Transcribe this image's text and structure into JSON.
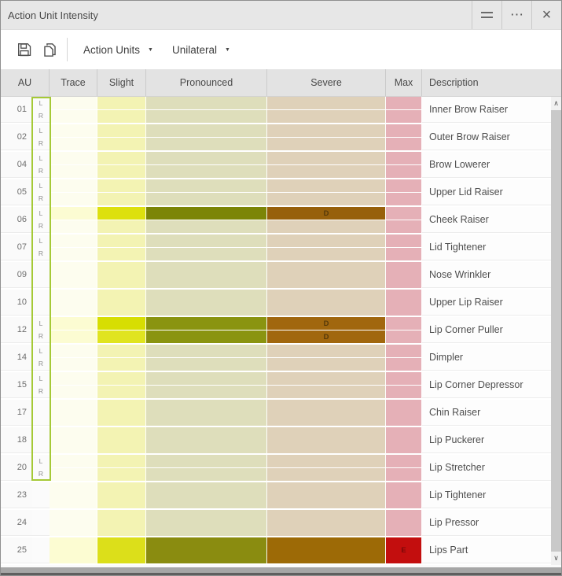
{
  "window": {
    "title": "Action Unit Intensity",
    "controls": {
      "more": "⋯",
      "close": "×"
    }
  },
  "toolbar": {
    "dropdowns": [
      {
        "label": "Action Units",
        "caret": "▼"
      },
      {
        "label": "Unilateral",
        "caret": "▼"
      }
    ]
  },
  "table": {
    "columns": [
      "AU",
      "Trace",
      "Slight",
      "Pronounced",
      "Severe",
      "Max",
      "Description"
    ],
    "palette": {
      "t0": "#fdfdef",
      "s0": "#f3f3b3",
      "p0": "#dedebb",
      "v0": "#dfd1b9",
      "m0": "#e5b0b7",
      "t1": "#fcfcd2",
      "s1": "#dde00e",
      "s2": "#d7de02",
      "s3": "#e0e41f",
      "s4": "#dcdf1a",
      "p1": "#7c8507",
      "p2": "#8a9410",
      "p3": "#8a8c10",
      "v1": "#97600b",
      "v2": "#a1670e",
      "v3": "#9d6a06",
      "m1": "#c30e0e"
    },
    "label_colors": {
      "D": "#54380a",
      "E": "#7c0808"
    },
    "rows": [
      {
        "au": "01",
        "description": "Inner Brow Raiser",
        "green": true,
        "subrows": [
          {
            "side": "L",
            "cells": [
              "t0",
              "s0",
              "p0",
              "v0",
              "m0"
            ]
          },
          {
            "side": "R",
            "cells": [
              "t0",
              "s0",
              "p0",
              "v0",
              "m0"
            ]
          }
        ]
      },
      {
        "au": "02",
        "description": "Outer Brow Raiser",
        "green": true,
        "subrows": [
          {
            "side": "L",
            "cells": [
              "t0",
              "s0",
              "p0",
              "v0",
              "m0"
            ]
          },
          {
            "side": "R",
            "cells": [
              "t0",
              "s0",
              "p0",
              "v0",
              "m0"
            ]
          }
        ]
      },
      {
        "au": "04",
        "description": "Brow Lowerer",
        "green": true,
        "subrows": [
          {
            "side": "L",
            "cells": [
              "t0",
              "s0",
              "p0",
              "v0",
              "m0"
            ]
          },
          {
            "side": "R",
            "cells": [
              "t0",
              "s0",
              "p0",
              "v0",
              "m0"
            ]
          }
        ]
      },
      {
        "au": "05",
        "description": "Upper Lid Raiser",
        "green": true,
        "subrows": [
          {
            "side": "L",
            "cells": [
              "t0",
              "s0",
              "p0",
              "v0",
              "m0"
            ]
          },
          {
            "side": "R",
            "cells": [
              "t0",
              "s0",
              "p0",
              "v0",
              "m0"
            ]
          }
        ]
      },
      {
        "au": "06",
        "description": "Cheek Raiser",
        "green": true,
        "subrows": [
          {
            "side": "L",
            "cells": [
              "t1",
              "s1",
              "p1",
              "v1",
              "m0"
            ],
            "labels": {
              "3": "D"
            }
          },
          {
            "side": "R",
            "cells": [
              "t0",
              "s0",
              "p0",
              "v0",
              "m0"
            ]
          }
        ]
      },
      {
        "au": "07",
        "description": "Lid Tightener",
        "green": true,
        "subrows": [
          {
            "side": "L",
            "cells": [
              "t0",
              "s0",
              "p0",
              "v0",
              "m0"
            ]
          },
          {
            "side": "R",
            "cells": [
              "t0",
              "s0",
              "p0",
              "v0",
              "m0"
            ]
          }
        ]
      },
      {
        "au": "09",
        "description": "Nose Wrinkler",
        "green": true,
        "subrows": [
          {
            "side": "",
            "cells": [
              "t0",
              "s0",
              "p0",
              "v0",
              "m0"
            ]
          }
        ]
      },
      {
        "au": "10",
        "description": "Upper Lip Raiser",
        "green": true,
        "subrows": [
          {
            "side": "",
            "cells": [
              "t0",
              "s0",
              "p0",
              "v0",
              "m0"
            ]
          }
        ]
      },
      {
        "au": "12",
        "description": "Lip Corner Puller",
        "green": true,
        "subrows": [
          {
            "side": "L",
            "cells": [
              "t1",
              "s2",
              "p2",
              "v2",
              "m0"
            ],
            "labels": {
              "3": "D"
            }
          },
          {
            "side": "R",
            "cells": [
              "t1",
              "s3",
              "p2",
              "v2",
              "m0"
            ],
            "labels": {
              "3": "D"
            }
          }
        ]
      },
      {
        "au": "14",
        "description": "Dimpler",
        "green": true,
        "subrows": [
          {
            "side": "L",
            "cells": [
              "t0",
              "s0",
              "p0",
              "v0",
              "m0"
            ]
          },
          {
            "side": "R",
            "cells": [
              "t0",
              "s0",
              "p0",
              "v0",
              "m0"
            ]
          }
        ]
      },
      {
        "au": "15",
        "description": "Lip Corner Depressor",
        "green": true,
        "subrows": [
          {
            "side": "L",
            "cells": [
              "t0",
              "s0",
              "p0",
              "v0",
              "m0"
            ]
          },
          {
            "side": "R",
            "cells": [
              "t0",
              "s0",
              "p0",
              "v0",
              "m0"
            ]
          }
        ]
      },
      {
        "au": "17",
        "description": "Chin Raiser",
        "green": true,
        "subrows": [
          {
            "side": "",
            "cells": [
              "t0",
              "s0",
              "p0",
              "v0",
              "m0"
            ]
          }
        ]
      },
      {
        "au": "18",
        "description": "Lip Puckerer",
        "green": true,
        "subrows": [
          {
            "side": "",
            "cells": [
              "t0",
              "s0",
              "p0",
              "v0",
              "m0"
            ]
          }
        ]
      },
      {
        "au": "20",
        "description": "Lip Stretcher",
        "green": true,
        "subrows": [
          {
            "side": "L",
            "cells": [
              "t0",
              "s0",
              "p0",
              "v0",
              "m0"
            ]
          },
          {
            "side": "R",
            "cells": [
              "t0",
              "s0",
              "p0",
              "v0",
              "m0"
            ]
          }
        ]
      },
      {
        "au": "23",
        "description": "Lip Tightener",
        "green": false,
        "subrows": [
          {
            "side": "",
            "cells": [
              "t0",
              "s0",
              "p0",
              "v0",
              "m0"
            ]
          }
        ]
      },
      {
        "au": "24",
        "description": "Lip Pressor",
        "green": false,
        "subrows": [
          {
            "side": "",
            "cells": [
              "t0",
              "s0",
              "p0",
              "v0",
              "m0"
            ]
          }
        ]
      },
      {
        "au": "25",
        "description": "Lips Part",
        "green": false,
        "subrows": [
          {
            "side": "",
            "cells": [
              "t1",
              "s4",
              "p3",
              "v3",
              "m1"
            ],
            "labels": {
              "4": "E"
            }
          }
        ]
      }
    ]
  },
  "scrollbar": {
    "up": "∧",
    "down": "∨"
  }
}
